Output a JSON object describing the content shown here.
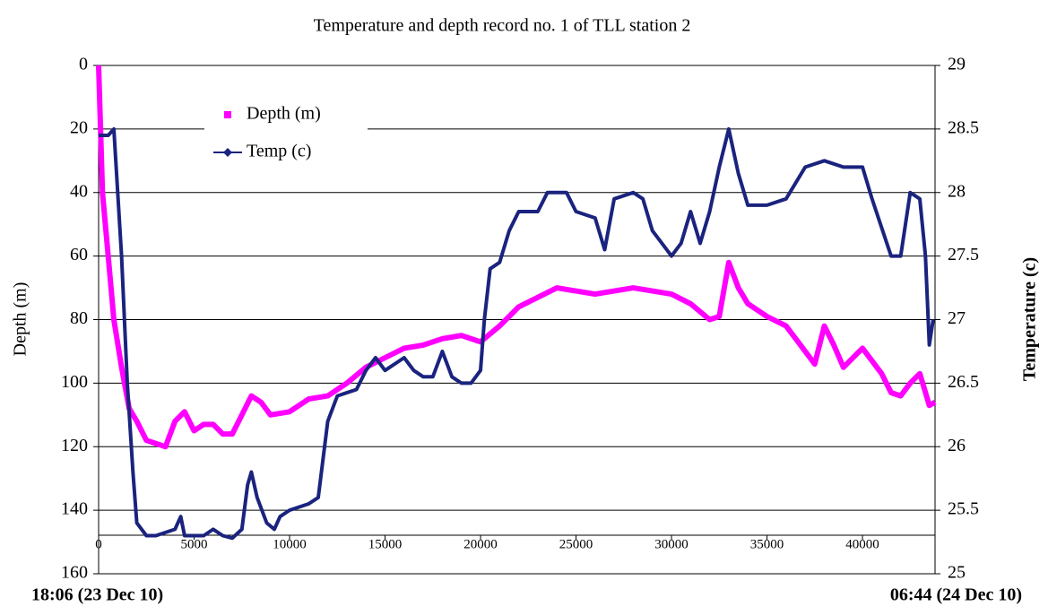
{
  "chart_data": {
    "type": "line",
    "title": "Temperature and depth record no. 1 of TLL station 2",
    "y_label": "Depth (m)",
    "y2_label": "Temperature (c)",
    "x_start_label": "18:06 (23 Dec 10)",
    "x_end_label": "06:44 (24 Dec 10)",
    "xlim": [
      0,
      43800
    ],
    "xticks": [
      0,
      5000,
      10000,
      15000,
      20000,
      25000,
      30000,
      35000,
      40000
    ],
    "ylim": [
      160,
      0
    ],
    "yticks": [
      0,
      20,
      40,
      60,
      80,
      100,
      120,
      140,
      160
    ],
    "y2lim": [
      25,
      29
    ],
    "y2ticks": [
      25,
      25.5,
      26,
      26.5,
      27,
      27.5,
      28,
      28.5,
      29
    ],
    "grid": true,
    "legend": "top-left",
    "series": [
      {
        "name": "Depth (m)",
        "color": "#ff00ff",
        "marker": "square",
        "x": [
          0,
          200,
          500,
          800,
          1200,
          1600,
          2000,
          2500,
          3000,
          3500,
          4000,
          4500,
          5000,
          5500,
          6000,
          6500,
          7000,
          7500,
          8000,
          8500,
          9000,
          10000,
          11000,
          12000,
          13000,
          14000,
          15000,
          16000,
          17000,
          18000,
          19000,
          20000,
          21000,
          22000,
          23000,
          24000,
          25000,
          26000,
          27000,
          28000,
          29000,
          30000,
          31000,
          32000,
          32500,
          33000,
          33500,
          34000,
          35000,
          36000,
          37000,
          37500,
          38000,
          38500,
          39000,
          40000,
          41000,
          41500,
          42000,
          42500,
          43000,
          43500,
          43800
        ],
        "values": [
          0,
          40,
          60,
          80,
          95,
          108,
          112,
          118,
          119,
          120,
          112,
          109,
          115,
          113,
          113,
          116,
          116,
          110,
          104,
          106,
          110,
          109,
          105,
          104,
          100,
          95,
          92,
          89,
          88,
          86,
          85,
          87,
          82,
          76,
          73,
          70,
          71,
          72,
          71,
          70,
          71,
          72,
          75,
          80,
          79,
          62,
          70,
          75,
          79,
          82,
          90,
          94,
          82,
          88,
          95,
          89,
          97,
          103,
          104,
          100,
          97,
          107,
          106
        ]
      },
      {
        "name": "Temp (c)",
        "color": "#1a237e",
        "marker": "diamond",
        "axis": "y2",
        "x": [
          0,
          500,
          800,
          1200,
          1500,
          1800,
          2000,
          2500,
          3000,
          4000,
          4300,
          4500,
          5000,
          5500,
          6000,
          6500,
          7000,
          7500,
          7800,
          8000,
          8300,
          8800,
          9200,
          9500,
          10000,
          11000,
          11500,
          12000,
          12500,
          13500,
          14000,
          14500,
          15000,
          16000,
          16500,
          17000,
          17500,
          18000,
          18500,
          19000,
          19500,
          20000,
          20200,
          20500,
          21000,
          21500,
          22000,
          23000,
          23500,
          24500,
          25000,
          26000,
          26500,
          27000,
          28000,
          28500,
          29000,
          29500,
          30000,
          30500,
          31000,
          31500,
          32000,
          32500,
          33000,
          33500,
          34000,
          35000,
          36000,
          37000,
          38000,
          39000,
          40000,
          40500,
          41500,
          42000,
          42500,
          43000,
          43300,
          43500,
          43700
        ],
        "values": [
          28.45,
          28.45,
          28.5,
          27.5,
          26.5,
          25.8,
          25.4,
          25.3,
          25.3,
          25.35,
          25.45,
          25.3,
          25.3,
          25.3,
          25.35,
          25.3,
          25.28,
          25.35,
          25.7,
          25.8,
          25.6,
          25.4,
          25.35,
          25.45,
          25.5,
          25.55,
          25.6,
          26.2,
          26.4,
          26.45,
          26.6,
          26.7,
          26.6,
          26.7,
          26.6,
          26.55,
          26.55,
          26.75,
          26.55,
          26.5,
          26.5,
          26.6,
          27.0,
          27.4,
          27.45,
          27.7,
          27.85,
          27.85,
          28,
          28,
          27.85,
          27.8,
          27.55,
          27.95,
          28,
          27.95,
          27.7,
          27.6,
          27.5,
          27.6,
          27.85,
          27.6,
          27.85,
          28.2,
          28.5,
          28.15,
          27.9,
          27.9,
          27.95,
          28.2,
          28.25,
          28.2,
          28.2,
          27.95,
          27.5,
          27.5,
          28,
          27.95,
          27.5,
          26.8,
          27.0
        ]
      }
    ]
  }
}
